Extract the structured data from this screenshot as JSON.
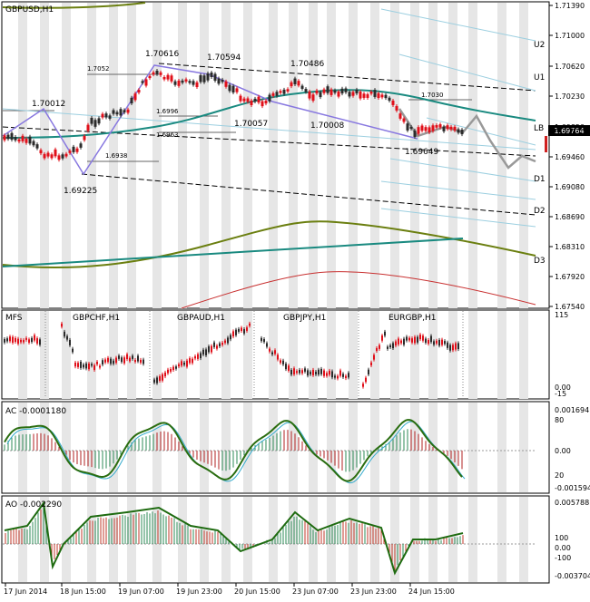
{
  "main": {
    "title": "GBPUSD,H1",
    "current_price": "1.69764",
    "price_axis": [
      "1.71390",
      "1.71000",
      "1.70620",
      "1.70230",
      "1.69850",
      "1.69460",
      "1.69080",
      "1.68690",
      "1.68310",
      "1.67920",
      "1.67540"
    ],
    "channel_labels": [
      "U2",
      "U1",
      "LB",
      "D1",
      "D2",
      "D3"
    ],
    "pivots": [
      {
        "label": "1.70012",
        "x": 35,
        "y": 117
      },
      {
        "label": "1.69225",
        "x": 70,
        "y": 213
      },
      {
        "label": "1.70616",
        "x": 160,
        "y": 62
      },
      {
        "label": "1.70594",
        "x": 228,
        "y": 66
      },
      {
        "label": "1.70486",
        "x": 320,
        "y": 73
      },
      {
        "label": "1.70057",
        "x": 258,
        "y": 139
      },
      {
        "label": "1.70008",
        "x": 342,
        "y": 141
      },
      {
        "label": "1.69649",
        "x": 446,
        "y": 170
      }
    ],
    "level_labels": [
      {
        "label": "1.7052",
        "x": 96,
        "y": 78
      },
      {
        "label": "1.6996",
        "x": 172,
        "y": 125
      },
      {
        "label": "1.6963",
        "x": 172,
        "y": 151
      },
      {
        "label": "1.6938",
        "x": 116,
        "y": 174
      },
      {
        "label": "1.7030",
        "x": 464,
        "y": 107
      }
    ]
  },
  "mfs": {
    "title": "MFS",
    "panels": [
      "GBPCHF,H1",
      "GBPAUD,H1",
      "GBPJPY,H1",
      "EURGBP,H1"
    ],
    "axis": [
      "115",
      "0.00",
      "-15"
    ]
  },
  "ac": {
    "title": "AC -0.0001180",
    "axis": [
      "0.001694",
      "80",
      "0.00",
      "20",
      "-0.001594"
    ]
  },
  "ao": {
    "title": "AO -0.002290",
    "axis": [
      "0.005788",
      "100",
      "0.00",
      "-100",
      "-0.003704"
    ]
  },
  "time_axis": [
    "17 Jun 2014",
    "18 Jun 15:00",
    "19 Jun 07:00",
    "19 Jun 23:00",
    "20 Jun 15:00",
    "23 Jun 07:00",
    "23 Jun 23:00",
    "24 Jun 15:00"
  ],
  "colors": {
    "bull": "#2b2b2b",
    "bear": "#e0101a",
    "teal": "#1a8a80",
    "olive": "#6b7f10",
    "purple": "#8878e0",
    "band": "#e6e6e6",
    "price_marker": "#d02020"
  }
}
